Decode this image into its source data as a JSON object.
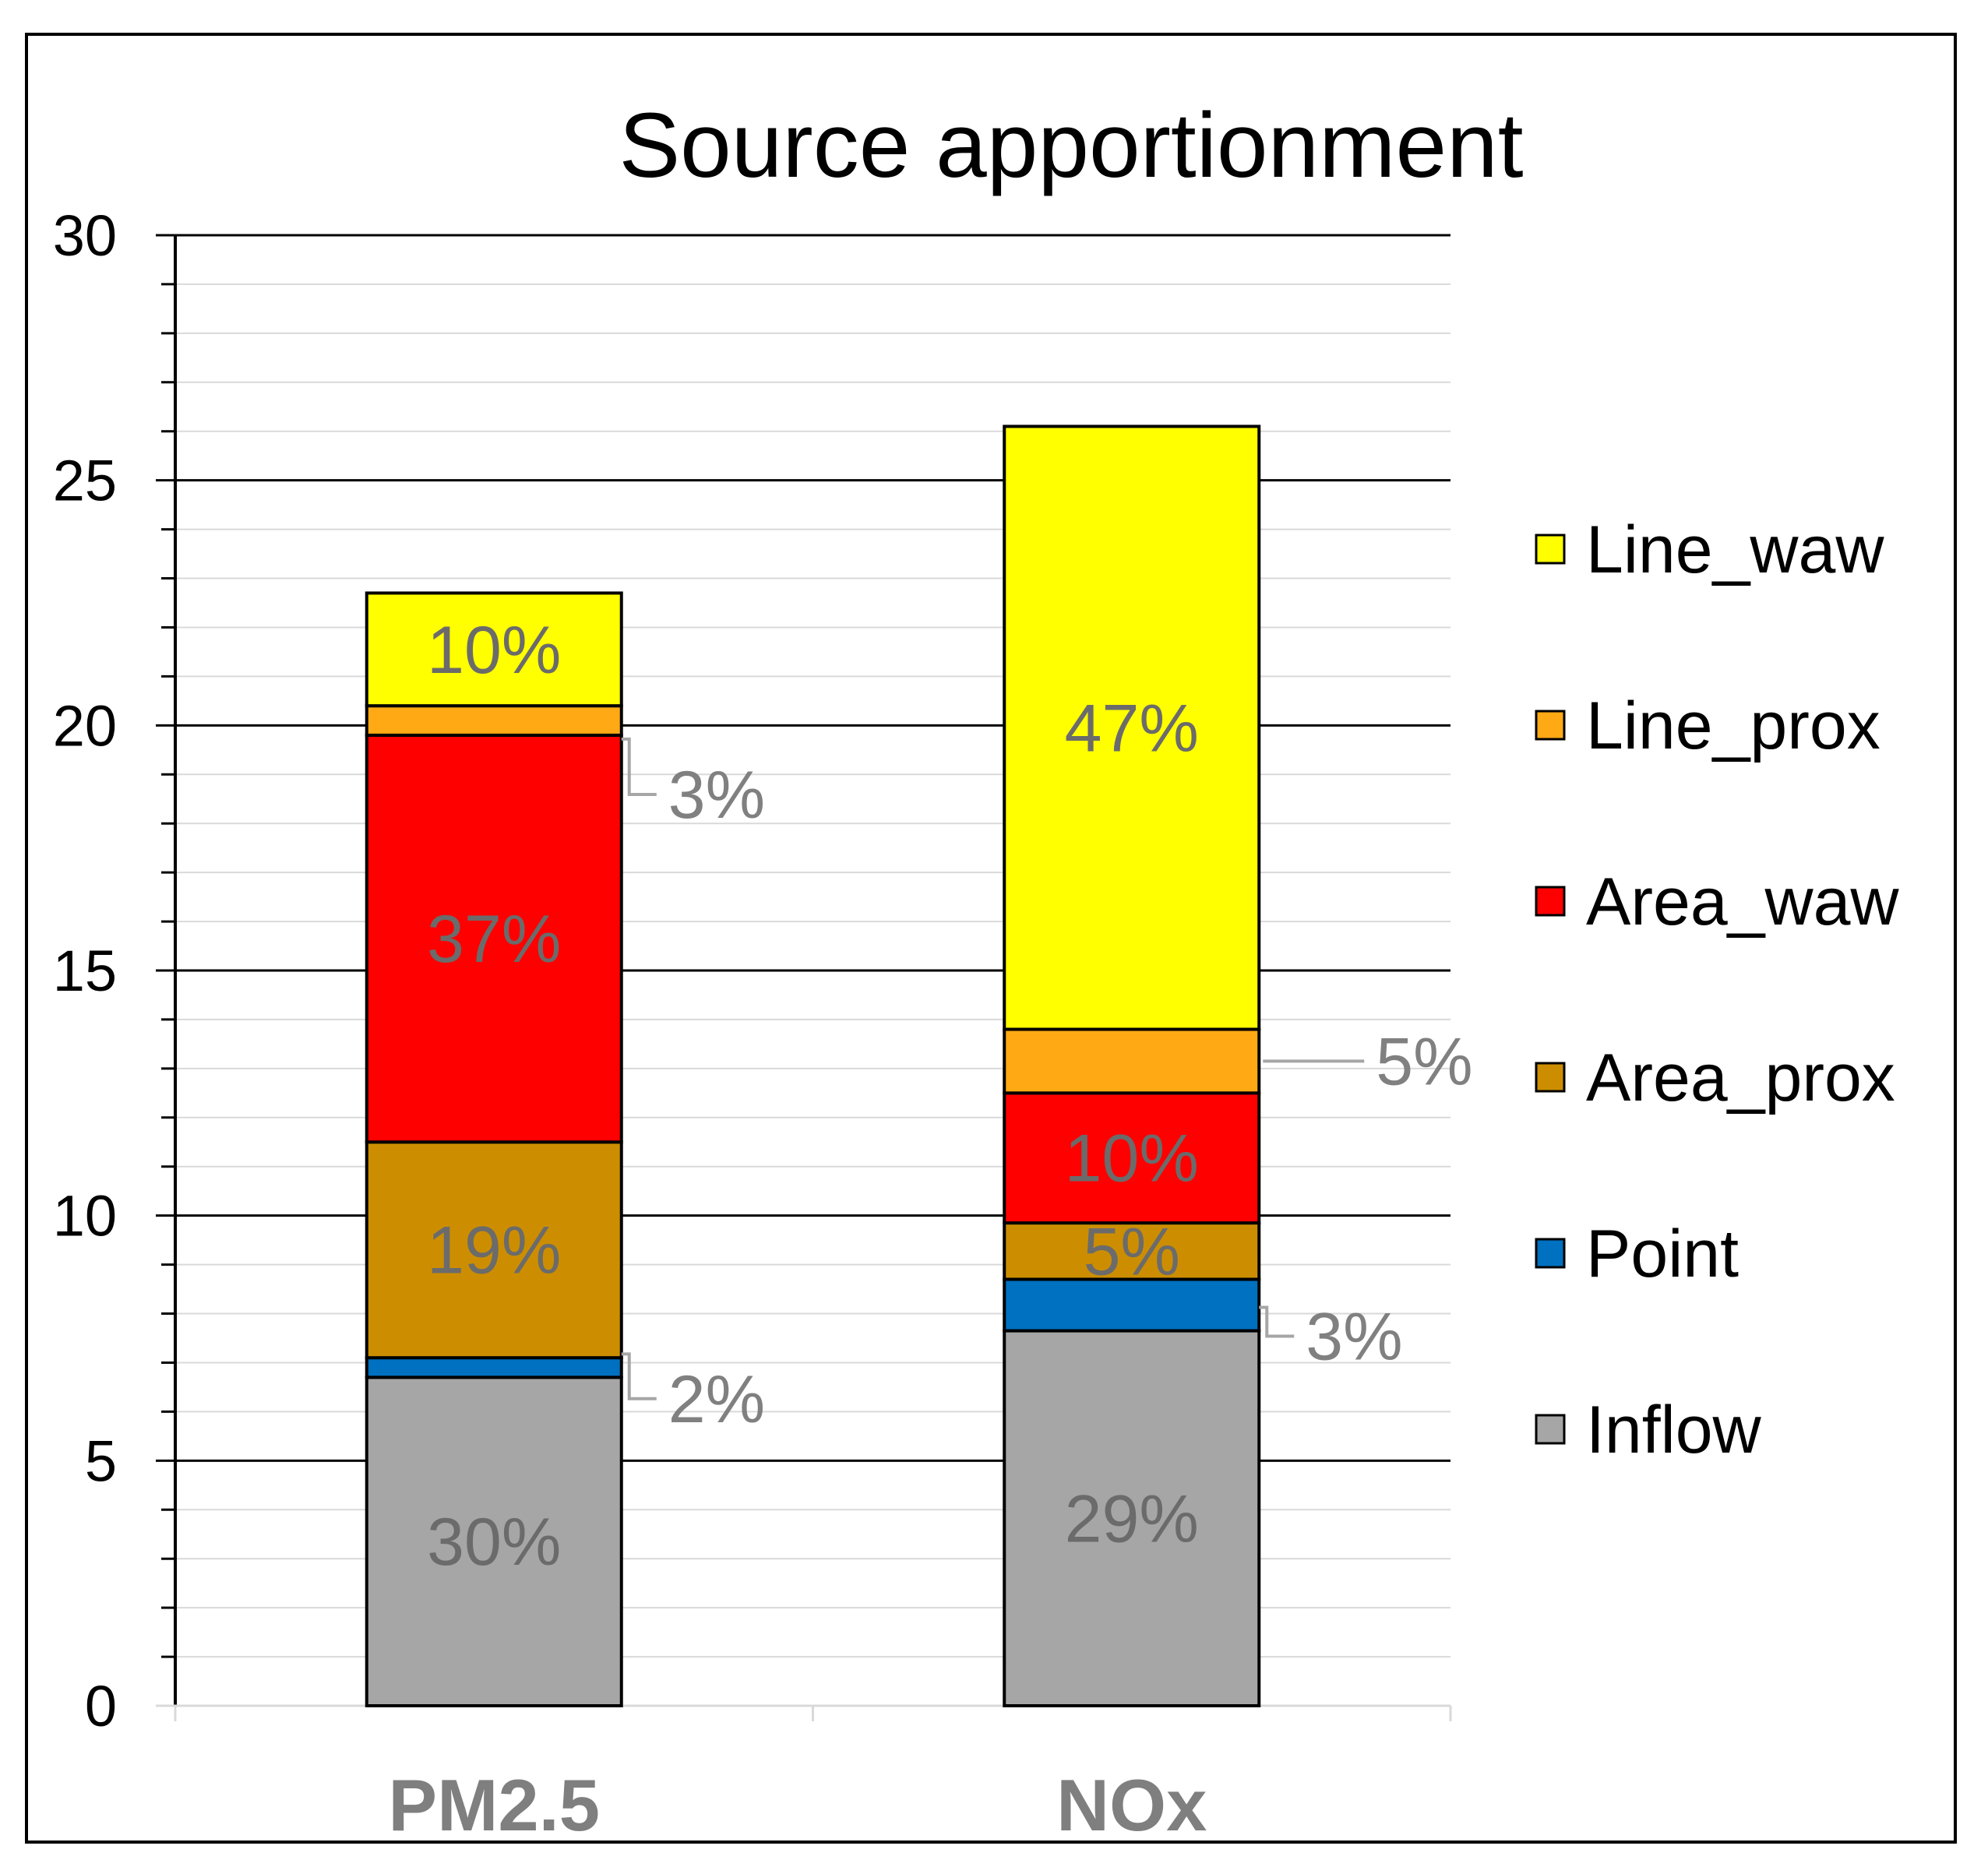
{
  "chart_data": {
    "type": "bar",
    "stacked": true,
    "title": "Source apportionment",
    "xlabel": "",
    "ylabel": "",
    "ylim": [
      0,
      30
    ],
    "yticks": [
      "0",
      "5",
      "10",
      "15",
      "20",
      "25",
      "30"
    ],
    "categories": [
      "PM2.5",
      "NOx"
    ],
    "series": [
      {
        "name": "Inflow",
        "color": "#a6a6a6",
        "values": [
          6.7,
          7.65
        ],
        "labels": [
          "30%",
          "29%"
        ]
      },
      {
        "name": "Point",
        "color": "#0070c0",
        "values": [
          0.4,
          1.05
        ],
        "labels": [
          "2%",
          "3%"
        ]
      },
      {
        "name": "Area_prox",
        "color": "#cc8e00",
        "values": [
          4.4,
          1.15
        ],
        "labels": [
          "19%",
          "5%"
        ]
      },
      {
        "name": "Area_waw",
        "color": "#ff0000",
        "values": [
          8.3,
          2.65
        ],
        "labels": [
          "37%",
          "10%"
        ]
      },
      {
        "name": "Line_prox",
        "color": "#ffaa14",
        "values": [
          0.6,
          1.3
        ],
        "labels": [
          "3%",
          "5%"
        ]
      },
      {
        "name": "Line_waw",
        "color": "#ffff00",
        "values": [
          2.3,
          12.3
        ],
        "labels": [
          "10%",
          "47%"
        ]
      }
    ],
    "legend_order": [
      "Line_waw",
      "Line_prox",
      "Area_waw",
      "Area_prox",
      "Point",
      "Inflow"
    ],
    "legend_position": "right"
  }
}
